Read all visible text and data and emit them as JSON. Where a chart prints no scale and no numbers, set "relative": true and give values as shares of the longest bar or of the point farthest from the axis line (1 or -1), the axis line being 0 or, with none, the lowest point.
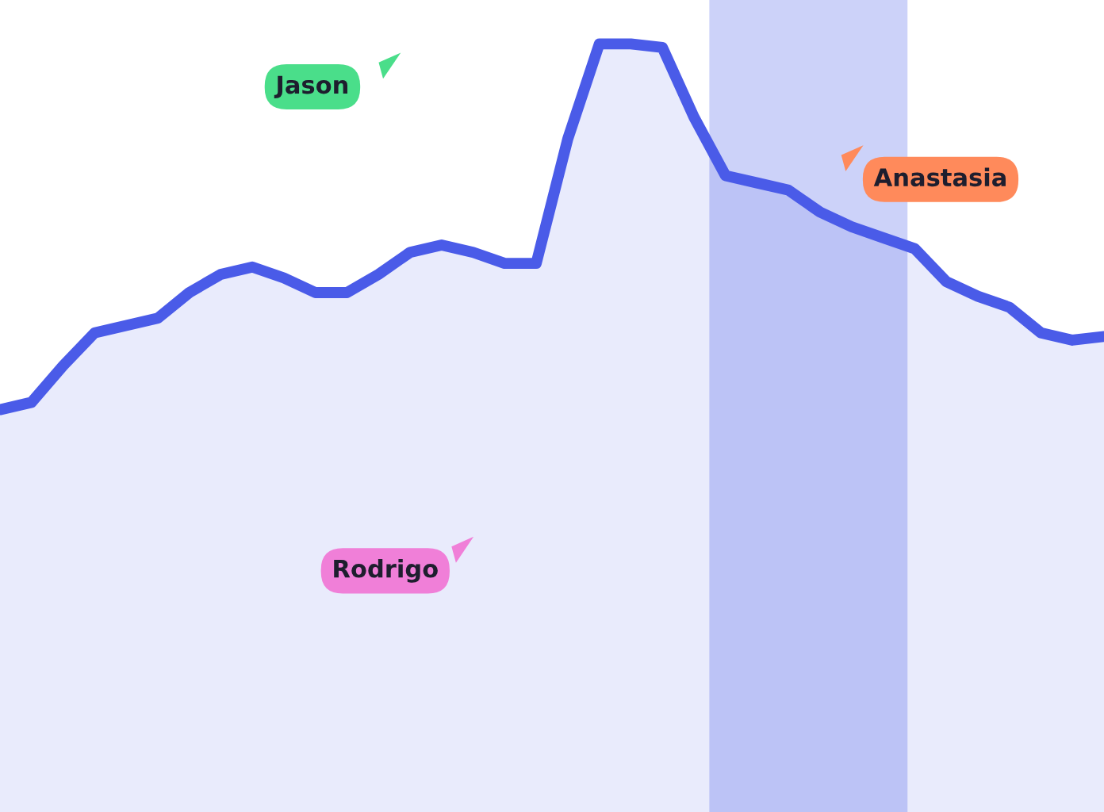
{
  "chart_data": {
    "type": "area",
    "relative": true,
    "categories": [
      null,
      null,
      null,
      null,
      null,
      null,
      null,
      null,
      null,
      null,
      null,
      null,
      null,
      null,
      null,
      null,
      null,
      null,
      null,
      null,
      null,
      null,
      null,
      null,
      null,
      null,
      null,
      null,
      null,
      null,
      null,
      null,
      null,
      null,
      null,
      null
    ],
    "series": [
      {
        "color": "#4a5be8",
        "values": [
          0,
          0.02,
          0.12,
          0.21,
          0.23,
          0.25,
          0.32,
          0.37,
          0.39,
          0.36,
          0.32,
          0.32,
          0.37,
          0.43,
          0.45,
          0.43,
          0.4,
          0.4,
          0.74,
          1,
          1,
          0.99,
          0.8,
          0.64,
          0.62,
          0.6,
          0.54,
          0.5,
          0.47,
          0.44,
          0.35,
          0.31,
          0.28,
          0.21,
          0.19,
          0.2
        ]
      }
    ],
    "annotations": [
      "Jason",
      "Anastasia",
      "Rodrigo"
    ],
    "grid": false,
    "legend": false
  }
}
